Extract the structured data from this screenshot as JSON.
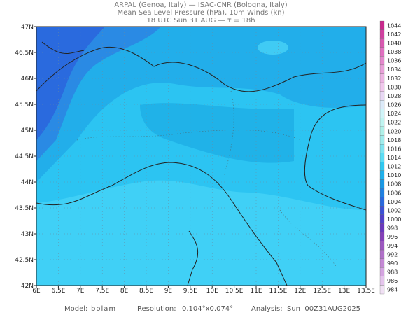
{
  "header": {
    "line1": "ARPAL (Genoa, Italy)  —  ISAC-CNR (Bologna, Italy)",
    "line2": "Mean Sea Level Pressure (hPa), 10m Winds (kn)",
    "line3": "18 UTC Sun 31 AUG  —  τ = 18h"
  },
  "map": {
    "lon_labels": [
      "6E",
      "6.5E",
      "7E",
      "7.5E",
      "8E",
      "8.5E",
      "9E",
      "9.5E",
      "10E",
      "10.5E",
      "11E",
      "11.5E",
      "12E",
      "12.5E",
      "13E",
      "13.5E"
    ],
    "lat_labels": [
      "47N",
      "46.5N",
      "46N",
      "45.5N",
      "45N",
      "44.5N",
      "44N",
      "43.5N",
      "43N",
      "42.5N",
      "42N"
    ]
  },
  "colorbar": {
    "labels": [
      1044,
      1042,
      1040,
      1038,
      1036,
      1034,
      1032,
      1030,
      1028,
      1026,
      1024,
      1022,
      1020,
      1018,
      1016,
      1014,
      1012,
      1010,
      1008,
      1006,
      1004,
      1002,
      1000,
      998,
      996,
      994,
      992,
      990,
      988,
      986,
      984
    ],
    "colors": [
      "#c8288c",
      "#d040a0",
      "#d858b0",
      "#e070c0",
      "#e488cc",
      "#e8a0d8",
      "#ecb4e2",
      "#f0c8ec",
      "#e8d8f4",
      "#dceaf8",
      "#d0f4f8",
      "#c0f4f0",
      "#b0f0e8",
      "#a0ecec",
      "#80e4f0",
      "#5cdcf4",
      "#30c8f0",
      "#20b0ea",
      "#1a98e4",
      "#2080e0",
      "#2a68dc",
      "#3c50d4",
      "#5040c8",
      "#6a38bc",
      "#8440b8",
      "#9c58c0",
      "#b070c8",
      "#c488d4",
      "#d4a4e0",
      "#e4c4ec",
      "#f0e0f4"
    ]
  },
  "footer": {
    "model_label": "Model:",
    "model": "bolam",
    "resolution_label": "Resolution:",
    "resolution": "0.104°x0.074°",
    "analysis_label": "Analysis:",
    "analysis": "Sun  00Z31AUG2025"
  }
}
